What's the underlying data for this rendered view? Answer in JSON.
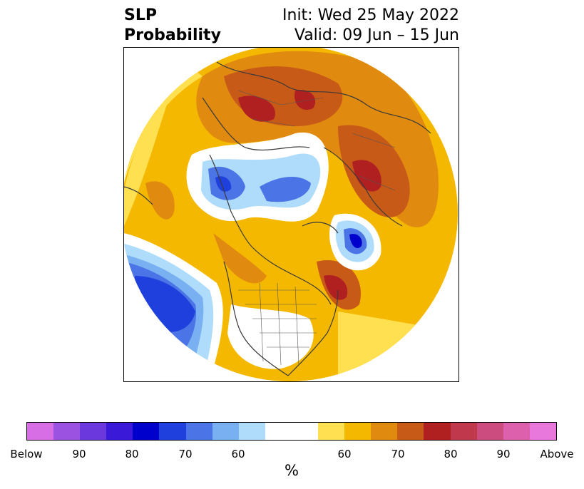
{
  "title": {
    "left_line1": "SLP",
    "left_line2": "Probability",
    "right_line1": "Init: Wed 25 May 2022",
    "right_line2": "Valid: 09 Jun – 15 Jun"
  },
  "colorbar": {
    "below_colors": [
      "#d86ee6",
      "#9b52e0",
      "#6a38dc",
      "#3a1ad8",
      "#0000cc",
      "#2040dd",
      "#4b74e6",
      "#78b0f2",
      "#aedcfa"
    ],
    "neutral_color": "#ffffff",
    "above_colors": [
      "#ffe050",
      "#f5b800",
      "#e08a10",
      "#c85a18",
      "#b02020",
      "#c0384c",
      "#cc4c80",
      "#dd60ac",
      "#e878dc"
    ],
    "tick_labels": [
      "Below",
      "90",
      "80",
      "70",
      "60",
      "60",
      "70",
      "80",
      "90",
      "Above"
    ],
    "unit": "%"
  },
  "map": {
    "projection": "north-polar-stereographic",
    "variable": "sea-level-pressure tercile probability"
  }
}
